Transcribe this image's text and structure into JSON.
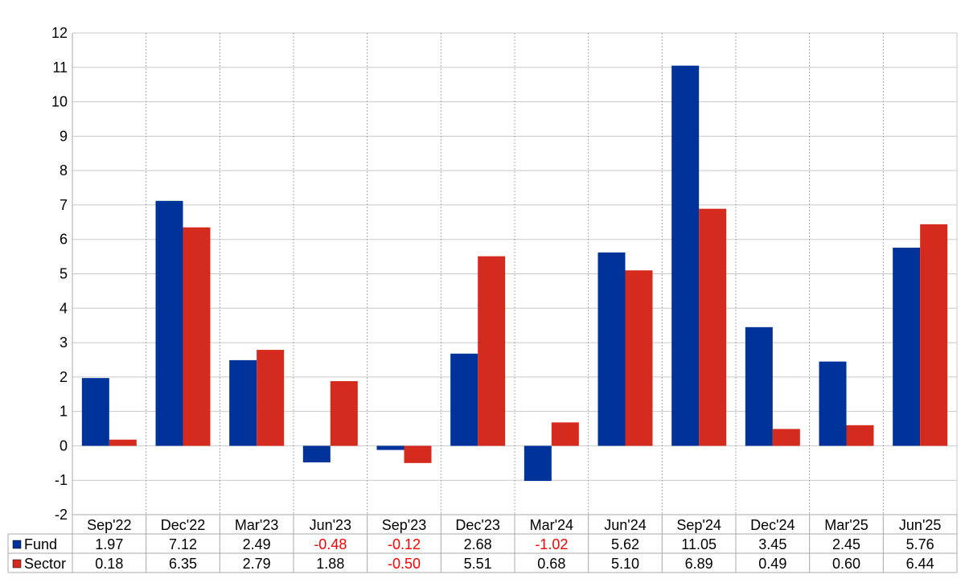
{
  "chart_data": {
    "type": "bar",
    "categories": [
      "Sep'22",
      "Dec'22",
      "Mar'23",
      "Jun'23",
      "Sep'23",
      "Dec'23",
      "Mar'24",
      "Jun'24",
      "Sep'24",
      "Dec'24",
      "Mar'25",
      "Jun'25"
    ],
    "series": [
      {
        "name": "Fund",
        "color": "#003399",
        "values": [
          1.97,
          7.12,
          2.49,
          -0.48,
          -0.12,
          2.68,
          -1.02,
          5.62,
          11.05,
          3.45,
          2.45,
          5.76
        ],
        "labels": [
          "1.97",
          "7.12",
          "2.49",
          "-0.48",
          "-0.12",
          "2.68",
          "-1.02",
          "5.62",
          "11.05",
          "3.45",
          "2.45",
          "5.76"
        ]
      },
      {
        "name": "Sector",
        "color": "#d52b1e",
        "values": [
          0.18,
          6.35,
          2.79,
          1.88,
          -0.5,
          5.51,
          0.68,
          5.1,
          6.89,
          0.49,
          0.6,
          6.44
        ],
        "labels": [
          "0.18",
          "6.35",
          "2.79",
          "1.88",
          "-0.50",
          "5.51",
          "0.68",
          "5.10",
          "6.89",
          "0.49",
          "0.60",
          "6.44"
        ]
      }
    ],
    "ylim": [
      -2,
      12
    ],
    "yticks": [
      "-2",
      "-1",
      "0",
      "1",
      "2",
      "3",
      "4",
      "5",
      "6",
      "7",
      "8",
      "9",
      "10",
      "11",
      "12"
    ],
    "grid": true,
    "legend_placement": "data-table-bottom",
    "negative_value_color": "#ff0000"
  }
}
